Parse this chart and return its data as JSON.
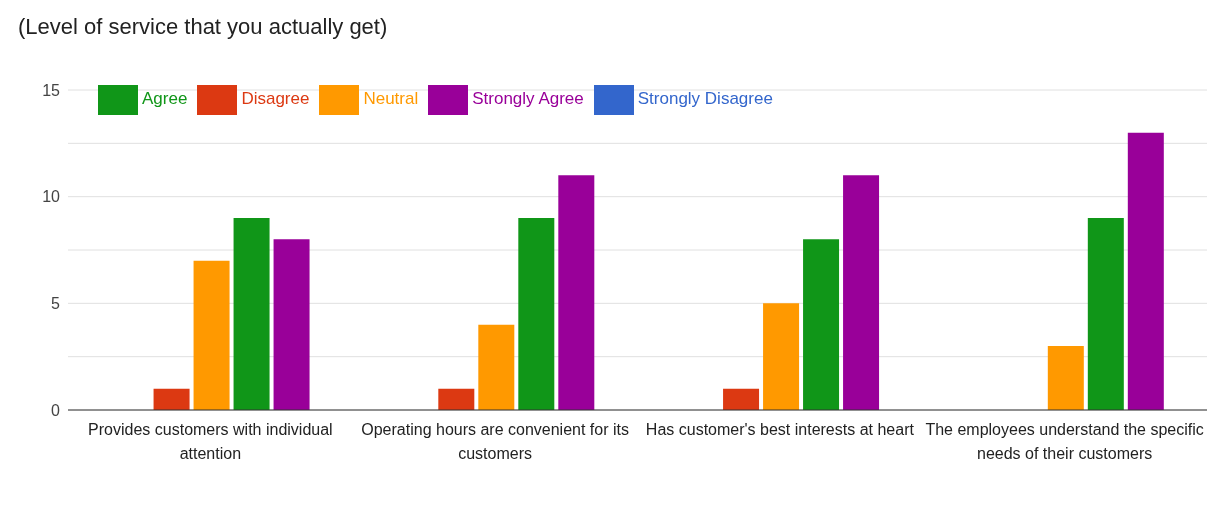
{
  "chart_data": {
    "type": "bar",
    "title": "(Level of service that you actually get)",
    "categories": [
      "Provides customers with individual attention",
      "Operating hours are convenient for its customers",
      "Has customer's best interests at heart",
      "The employees understand the specific needs of their customers"
    ],
    "series": [
      {
        "name": "Strongly Disagree",
        "color": "#3366cc",
        "values": [
          0,
          0,
          0,
          0
        ]
      },
      {
        "name": "Disagree",
        "color": "#dc3912",
        "values": [
          1,
          1,
          1,
          0
        ]
      },
      {
        "name": "Neutral",
        "color": "#ff9900",
        "values": [
          7,
          4,
          5,
          3
        ]
      },
      {
        "name": "Agree",
        "color": "#109618",
        "values": [
          9,
          9,
          8,
          9
        ]
      },
      {
        "name": "Strongly Agree",
        "color": "#990099",
        "values": [
          8,
          11,
          11,
          13
        ]
      }
    ],
    "ylim": [
      0,
      15
    ],
    "yticks": [
      0,
      {
        "value": 2.5,
        "label": null
      },
      5,
      {
        "value": 7.5,
        "label": null
      },
      10,
      {
        "value": 12.5,
        "label": null
      },
      15
    ],
    "grid": "y",
    "legend": "top left"
  }
}
